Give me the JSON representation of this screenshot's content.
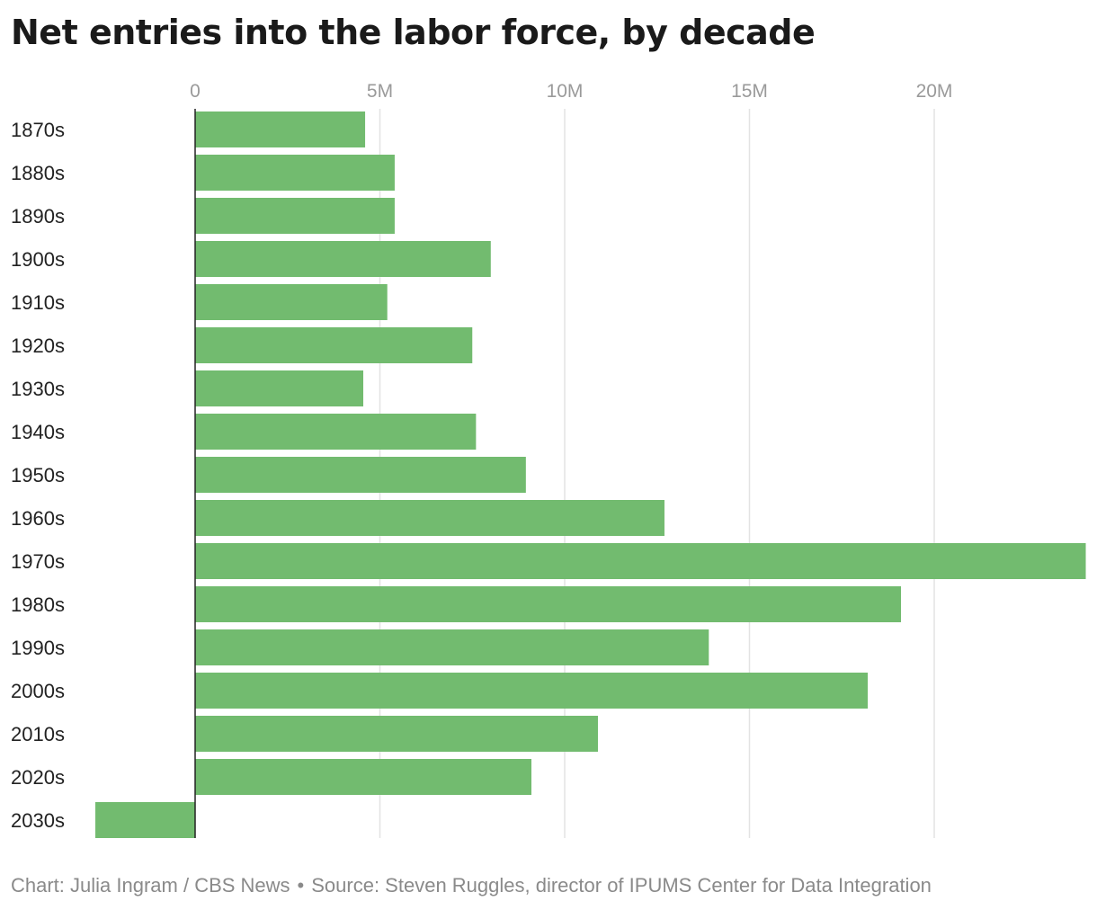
{
  "header": {
    "title": "Net entries into the labor force, by decade"
  },
  "footer": {
    "credit": "Chart: Julia Ingram / CBS News",
    "separator": "•",
    "source": "Source: Steven Ruggles, director of IPUMS Center for Data Integration"
  },
  "chart_data": {
    "type": "bar",
    "orientation": "horizontal",
    "categories": [
      "1870s",
      "1880s",
      "1890s",
      "1900s",
      "1910s",
      "1920s",
      "1930s",
      "1940s",
      "1950s",
      "1960s",
      "1970s",
      "1980s",
      "1990s",
      "2000s",
      "2010s",
      "2020s",
      "2030s"
    ],
    "values": [
      4600000,
      5400000,
      5400000,
      8000000,
      5200000,
      7500000,
      4550000,
      7600000,
      8950000,
      12700000,
      24100000,
      19100000,
      13900000,
      18200000,
      10900000,
      9100000,
      -2700000
    ],
    "xticks": [
      0,
      5000000,
      10000000,
      15000000,
      20000000
    ],
    "xtick_labels": [
      "0",
      "5M",
      "10M",
      "15M",
      "20M"
    ],
    "xlim": [
      -5250000,
      24100000
    ],
    "grid": true,
    "bar_color": "#72bb6f",
    "axis_color": "#222222",
    "grid_color": "#e3e3e3"
  }
}
